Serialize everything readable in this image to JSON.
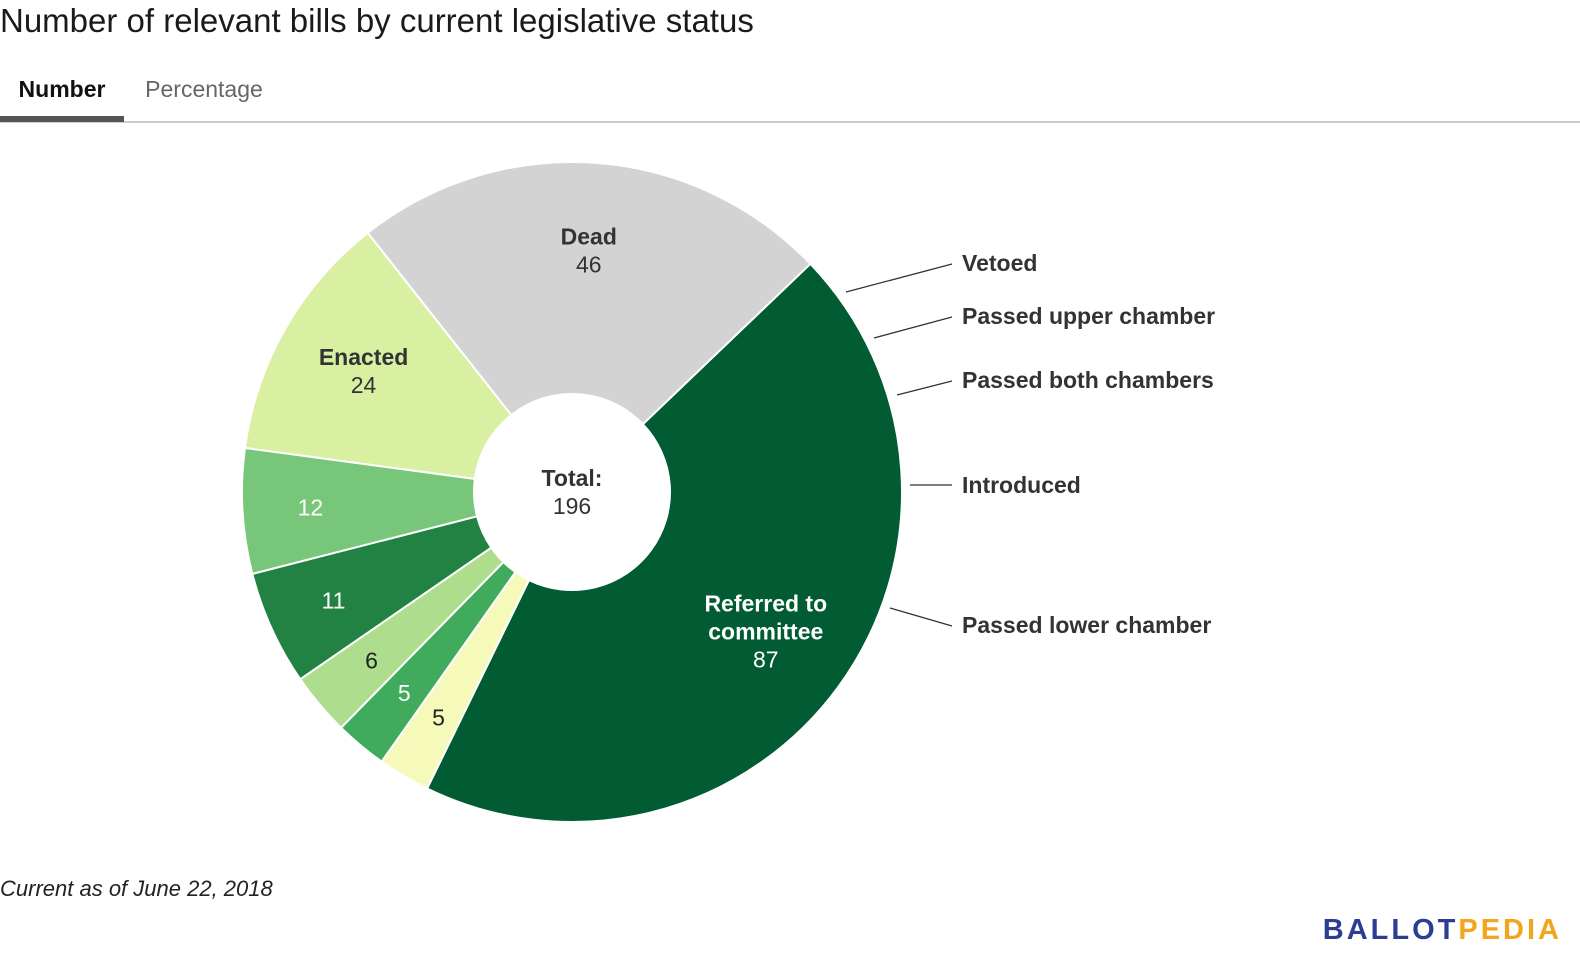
{
  "title": "Number of relevant bills by current legislative status",
  "tabs": [
    {
      "label": "Number",
      "active": true
    },
    {
      "label": "Percentage",
      "active": false
    }
  ],
  "chart_data": {
    "type": "pie",
    "donut": true,
    "center_label": "Total:",
    "total": "196",
    "slices": [
      {
        "name": "Referred to committee",
        "label_lines": [
          "Referred to",
          "committee"
        ],
        "value": 87,
        "color": "#015b33",
        "label_placement": "inside",
        "text_color": "#ffffff"
      },
      {
        "name": "Vetoed",
        "value": 5,
        "color": "#f5f9b9",
        "label_placement": "outside",
        "text_color": "#222222"
      },
      {
        "name": "Passed upper chamber",
        "value": 5,
        "color": "#40aa5d",
        "label_placement": "outside",
        "text_color": "#ffffff"
      },
      {
        "name": "Passed both chambers",
        "value": 6,
        "color": "#aedd8e",
        "label_placement": "outside",
        "text_color": "#222222"
      },
      {
        "name": "Introduced",
        "value": 11,
        "color": "#228243",
        "label_placement": "outside",
        "text_color": "#ffffff"
      },
      {
        "name": "Passed lower chamber",
        "value": 12,
        "color": "#78c679",
        "label_placement": "outside",
        "text_color": "#ffffff"
      },
      {
        "name": "Enacted",
        "label_lines": [
          "Enacted"
        ],
        "value": 24,
        "color": "#d9f0a3",
        "label_placement": "inside",
        "text_color": "#333333"
      },
      {
        "name": "Dead",
        "label_lines": [
          "Dead"
        ],
        "value": 46,
        "color": "#d3d3d3",
        "label_placement": "inside",
        "text_color": "#333333"
      }
    ]
  },
  "footnote": "Current as of June 22, 2018",
  "logo": {
    "part1": "BALLOT",
    "part2": "PEDIA"
  }
}
